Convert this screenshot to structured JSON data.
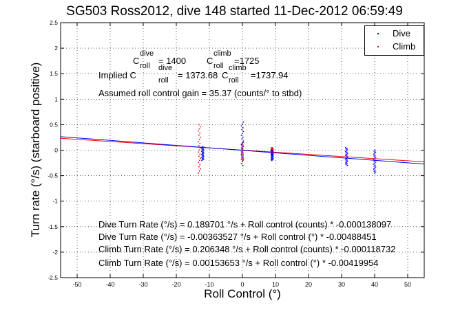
{
  "title": "SG503 Ross2012, dive 148 started 11-Dec-2012 06:59:49",
  "annotations": {
    "c_roll_label": "C",
    "dive_sup": "dive",
    "climb_sup": "climb",
    "roll_sub": "roll",
    "c_dive_value": "= 1400",
    "c_climb_value": "=1725",
    "implied_prefix": "Implied C",
    "implied_dive_value": "= 1373.68",
    "implied_climb_value": "=1737.94",
    "gain_text": "Assumed roll control gain = 35.37 (counts/° to stbd)",
    "fit_lines": [
      "Dive Turn Rate (°/s) = 0.189701 °/s + Roll control (counts) * -0.000138097",
      "Dive Turn Rate (°/s) = -0.00363527 °/s + Roll control (°) * -0.00488451",
      "Climb Turn Rate (°/s) = 0.206348 °/s + Roll control (counts) * -0.000118732",
      "Climb Turn Rate (°/s) = 0.00153653 °/s + Roll control (°) * -0.00419954"
    ]
  },
  "legend": {
    "dive": "Dive",
    "climb": "Climb"
  },
  "colors": {
    "dive": "#0000ff",
    "climb": "#ff0000",
    "axes": "#000000"
  },
  "chart_data": {
    "type": "scatter",
    "xlabel": "Roll Control (°)",
    "ylabel": "Turn rate (°/s) (starboard positive)",
    "xlim": [
      -55,
      55
    ],
    "ylim": [
      -2.5,
      2.5
    ],
    "xticks": [
      -50,
      -40,
      -30,
      -20,
      -10,
      0,
      10,
      20,
      30,
      40,
      50
    ],
    "yticks": [
      2.5,
      2,
      1.5,
      1,
      0.5,
      0,
      -0.5,
      -1,
      -1.5,
      -2,
      -2.5
    ],
    "grid": "dotted",
    "legend_position": "top-right",
    "series": [
      {
        "name": "Dive",
        "marker": "point",
        "clusters": [
          {
            "x": -12,
            "y_min": -0.2,
            "y_max": 0.07
          },
          {
            "x": 0,
            "y_min": -0.3,
            "y_max": 0.55
          },
          {
            "x": 9,
            "y_min": -0.2,
            "y_max": 0.0
          },
          {
            "x": 31.5,
            "y_min": -0.3,
            "y_max": 0.05
          },
          {
            "x": 40,
            "y_min": -0.45,
            "y_max": 0.0
          }
        ],
        "fit": {
          "intercept": -0.00363527,
          "slope": -0.00488451
        }
      },
      {
        "name": "Climb",
        "marker": "point",
        "clusters": [
          {
            "x": -13,
            "y_min": -0.45,
            "y_max": 0.5
          },
          {
            "x": 0,
            "y_min": -0.2,
            "y_max": 0.15
          },
          {
            "x": 9,
            "y_min": -0.1,
            "y_max": 0.05
          }
        ],
        "fit": {
          "intercept": 0.00153653,
          "slope": -0.00419954
        }
      }
    ]
  }
}
